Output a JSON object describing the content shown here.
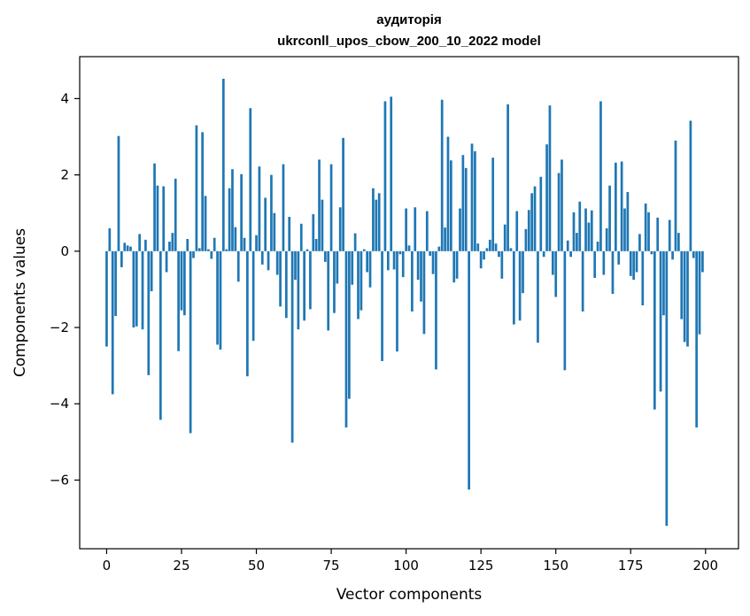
{
  "chart_data": {
    "type": "bar",
    "title": "аудиторія",
    "subtitle": "ukrconll_upos_cbow_200_10_2022 model",
    "xlabel": "Vector components",
    "ylabel": "Components values",
    "xlim": [
      -9,
      211
    ],
    "ylim": [
      -7.8,
      5.1
    ],
    "xticks": [
      0,
      25,
      50,
      75,
      100,
      125,
      150,
      175,
      200
    ],
    "yticks": [
      -6,
      -4,
      -2,
      0,
      2,
      4
    ],
    "bar_color": "#1f77b4",
    "grid": false,
    "legend": "none",
    "x": [
      0,
      1,
      2,
      3,
      4,
      5,
      6,
      7,
      8,
      9,
      10,
      11,
      12,
      13,
      14,
      15,
      16,
      17,
      18,
      19,
      20,
      21,
      22,
      23,
      24,
      25,
      26,
      27,
      28,
      29,
      30,
      31,
      32,
      33,
      34,
      35,
      36,
      37,
      38,
      39,
      40,
      41,
      42,
      43,
      44,
      45,
      46,
      47,
      48,
      49,
      50,
      51,
      52,
      53,
      54,
      55,
      56,
      57,
      58,
      59,
      60,
      61,
      62,
      63,
      64,
      65,
      66,
      67,
      68,
      69,
      70,
      71,
      72,
      73,
      74,
      75,
      76,
      77,
      78,
      79,
      80,
      81,
      82,
      83,
      84,
      85,
      86,
      87,
      88,
      89,
      90,
      91,
      92,
      93,
      94,
      95,
      96,
      97,
      98,
      99,
      100,
      101,
      102,
      103,
      104,
      105,
      106,
      107,
      108,
      109,
      110,
      111,
      112,
      113,
      114,
      115,
      116,
      117,
      118,
      119,
      120,
      121,
      122,
      123,
      124,
      125,
      126,
      127,
      128,
      129,
      130,
      131,
      132,
      133,
      134,
      135,
      136,
      137,
      138,
      139,
      140,
      141,
      142,
      143,
      144,
      145,
      146,
      147,
      148,
      149,
      150,
      151,
      152,
      153,
      154,
      155,
      156,
      157,
      158,
      159,
      160,
      161,
      162,
      163,
      164,
      165,
      166,
      167,
      168,
      169,
      170,
      171,
      172,
      173,
      174,
      175,
      176,
      177,
      178,
      179,
      180,
      181,
      182,
      183,
      184,
      185,
      186,
      187,
      188,
      189,
      190,
      191,
      192,
      193,
      194,
      195,
      196,
      197,
      198,
      199
    ],
    "values": [
      -2.5,
      0.6,
      -3.75,
      -1.7,
      3.02,
      -0.42,
      0.22,
      0.15,
      0.12,
      -2.0,
      -1.97,
      0.45,
      -2.05,
      0.3,
      -3.25,
      -1.05,
      2.3,
      1.72,
      -4.42,
      1.7,
      -0.55,
      0.25,
      0.48,
      1.9,
      -2.62,
      -1.55,
      -1.68,
      0.32,
      -4.77,
      -0.18,
      3.3,
      0.08,
      3.12,
      1.45,
      0.05,
      -0.2,
      0.35,
      -2.45,
      -2.58,
      4.52,
      0.05,
      1.65,
      2.15,
      0.63,
      -0.8,
      2.02,
      0.35,
      -3.28,
      3.75,
      -2.35,
      0.42,
      2.22,
      -0.35,
      1.4,
      -0.5,
      2.0,
      1.0,
      -0.62,
      -1.45,
      2.28,
      -1.75,
      0.9,
      -5.02,
      -0.75,
      -2.05,
      0.72,
      -1.82,
      0.05,
      -1.52,
      0.97,
      0.32,
      2.4,
      1.35,
      -0.28,
      -2.08,
      2.28,
      -1.62,
      -0.85,
      1.15,
      2.97,
      -4.62,
      -3.87,
      -0.88,
      0.47,
      -1.78,
      -1.55,
      0.05,
      -0.55,
      -0.95,
      1.65,
      1.35,
      1.52,
      -2.88,
      3.93,
      -0.5,
      4.05,
      -0.48,
      -2.63,
      -0.08,
      -0.68,
      1.12,
      0.15,
      -1.58,
      1.15,
      -0.75,
      -1.32,
      -2.17,
      1.05,
      -0.12,
      -0.6,
      -3.1,
      0.12,
      3.97,
      0.62,
      3.0,
      2.38,
      -0.82,
      -0.72,
      1.12,
      2.52,
      2.18,
      -6.25,
      2.82,
      2.62,
      0.2,
      -0.45,
      -0.22,
      0.08,
      0.3,
      2.45,
      0.2,
      -0.15,
      -0.72,
      0.7,
      3.85,
      0.08,
      -1.92,
      1.05,
      -1.82,
      -1.1,
      0.58,
      1.08,
      1.52,
      1.7,
      -2.4,
      1.95,
      -0.15,
      2.8,
      3.82,
      -0.62,
      -1.2,
      2.05,
      2.4,
      -3.12,
      0.28,
      -0.15,
      1.02,
      0.48,
      1.3,
      -1.58,
      1.12,
      0.75,
      1.07,
      -0.7,
      0.25,
      3.93,
      -0.62,
      0.6,
      1.72,
      -1.12,
      2.32,
      -0.35,
      2.35,
      1.12,
      1.55,
      -0.65,
      -0.75,
      -0.55,
      0.45,
      -1.42,
      1.25,
      1.02,
      -0.08,
      -4.15,
      0.88,
      -3.68,
      -1.68,
      -7.2,
      0.82,
      -0.22,
      2.9,
      0.48,
      -1.78,
      -2.38,
      -2.5,
      3.42,
      -0.18,
      -4.62,
      -2.18,
      -0.55
    ]
  }
}
